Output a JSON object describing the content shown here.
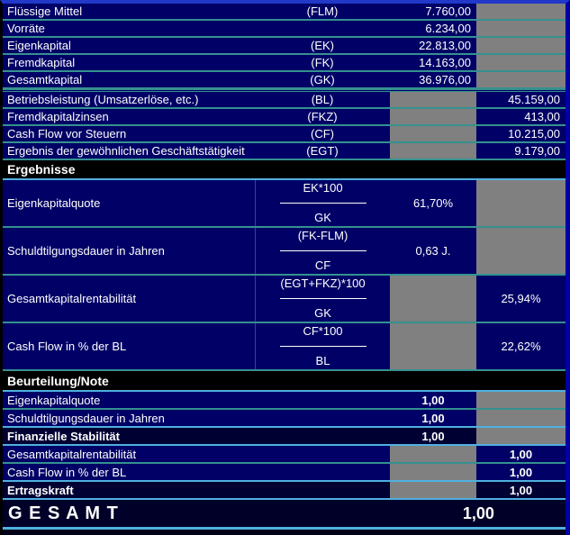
{
  "table": {
    "headers": {
      "ergebnisse": "Ergebnisse",
      "beurteilung": "Beurteilung/Note"
    },
    "block1": [
      {
        "label": "Flüssige Mittel",
        "abbr": "(FLM)",
        "value": "7.760,00"
      },
      {
        "label": "Vorräte",
        "abbr": "",
        "value": "6.234,00"
      },
      {
        "label": "Eigenkapital",
        "abbr": "(EK)",
        "value": "22.813,00"
      },
      {
        "label": "Fremdkapital",
        "abbr": "(FK)",
        "value": "14.163,00"
      },
      {
        "label": "Gesamtkapital",
        "abbr": "(GK)",
        "value": "36.976,00"
      }
    ],
    "block2": [
      {
        "label": "Betriebsleistung (Umsatzerlöse, etc.)",
        "abbr": "(BL)",
        "value": "45.159,00"
      },
      {
        "label": "Fremdkapitalzinsen",
        "abbr": "(FKZ)",
        "value": "413,00"
      },
      {
        "label": "Cash Flow vor Steuern",
        "abbr": "(CF)",
        "value": "10.215,00"
      },
      {
        "label": "Ergebnis der gewöhnlichen Geschäftstätigkeit",
        "abbr": "(EGT)",
        "value": "9.179,00"
      }
    ],
    "ratios": [
      {
        "label": "Eigenkapitalquote",
        "numerator": "EK*100",
        "denominator": "GK",
        "value": "61,70%"
      },
      {
        "label": "Schuldtilgungsdauer in Jahren",
        "numerator": "(FK-FLM)",
        "denominator": "CF",
        "value": "0,63 J."
      },
      {
        "label": "Gesamtkapitalrentabilität",
        "numerator": "(EGT+FKZ)*100",
        "denominator": "GK",
        "value": "25,94%"
      },
      {
        "label": "Cash Flow in % der BL",
        "numerator": "CF*100",
        "denominator": "BL",
        "value": "22,62%"
      }
    ],
    "notes": [
      {
        "label": "Eigenkapitalquote",
        "value": "1,00"
      },
      {
        "label": "Schuldtilgungsdauer in Jahren",
        "value": "1,00"
      },
      {
        "label": "Finanzielle Stabilität",
        "value": "1,00"
      },
      {
        "label": "Gesamtkapitalrentabilität",
        "value": "1,00"
      },
      {
        "label": "Cash Flow in % der BL",
        "value": "1,00"
      },
      {
        "label": "Ertragskraft",
        "value": "1,00"
      }
    ],
    "total": {
      "label": "G E S A M T",
      "value": "1,00"
    }
  },
  "colors": {
    "row_bg": "#000066",
    "emphasis_row_bg": "#000033",
    "section_header_bg": "#000000",
    "gray_cell": "#808080",
    "separator_teal": "#35918F",
    "separator_cyan": "#4FB0E0",
    "top_border_blue": "#2138C8",
    "right_strip_blue": "#0000A6",
    "text": "#FFFFFF"
  }
}
